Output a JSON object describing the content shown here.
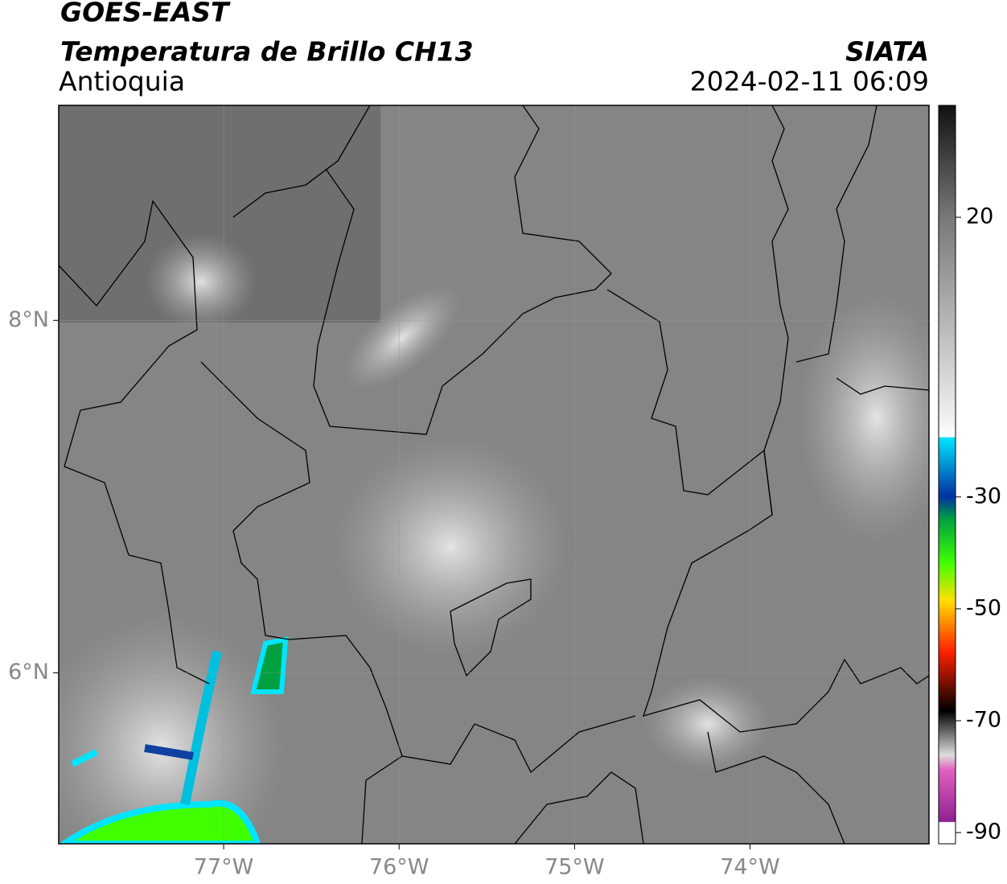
{
  "header": {
    "satellite": "GOES-EAST",
    "title": "Temperatura de Brillo CH13",
    "region": "Antioquia",
    "source": "SIATA",
    "datetime": "2024-02-11 06:09"
  },
  "map": {
    "xlim": [
      -77.94,
      -72.98
    ],
    "ylim": [
      5.03,
      9.22
    ],
    "xticks": [
      {
        "value": -77,
        "label": "77°W"
      },
      {
        "value": -76,
        "label": "76°W"
      },
      {
        "value": -75,
        "label": "75°W"
      },
      {
        "value": -74,
        "label": "74°W"
      }
    ],
    "yticks": [
      {
        "value": 8,
        "label": "8°N"
      },
      {
        "value": 6,
        "label": "6°N"
      }
    ],
    "grid": true
  },
  "colorbar": {
    "lim": [
      -92,
      40
    ],
    "ticks": [
      20,
      -30,
      -50,
      -70,
      -90
    ]
  }
}
